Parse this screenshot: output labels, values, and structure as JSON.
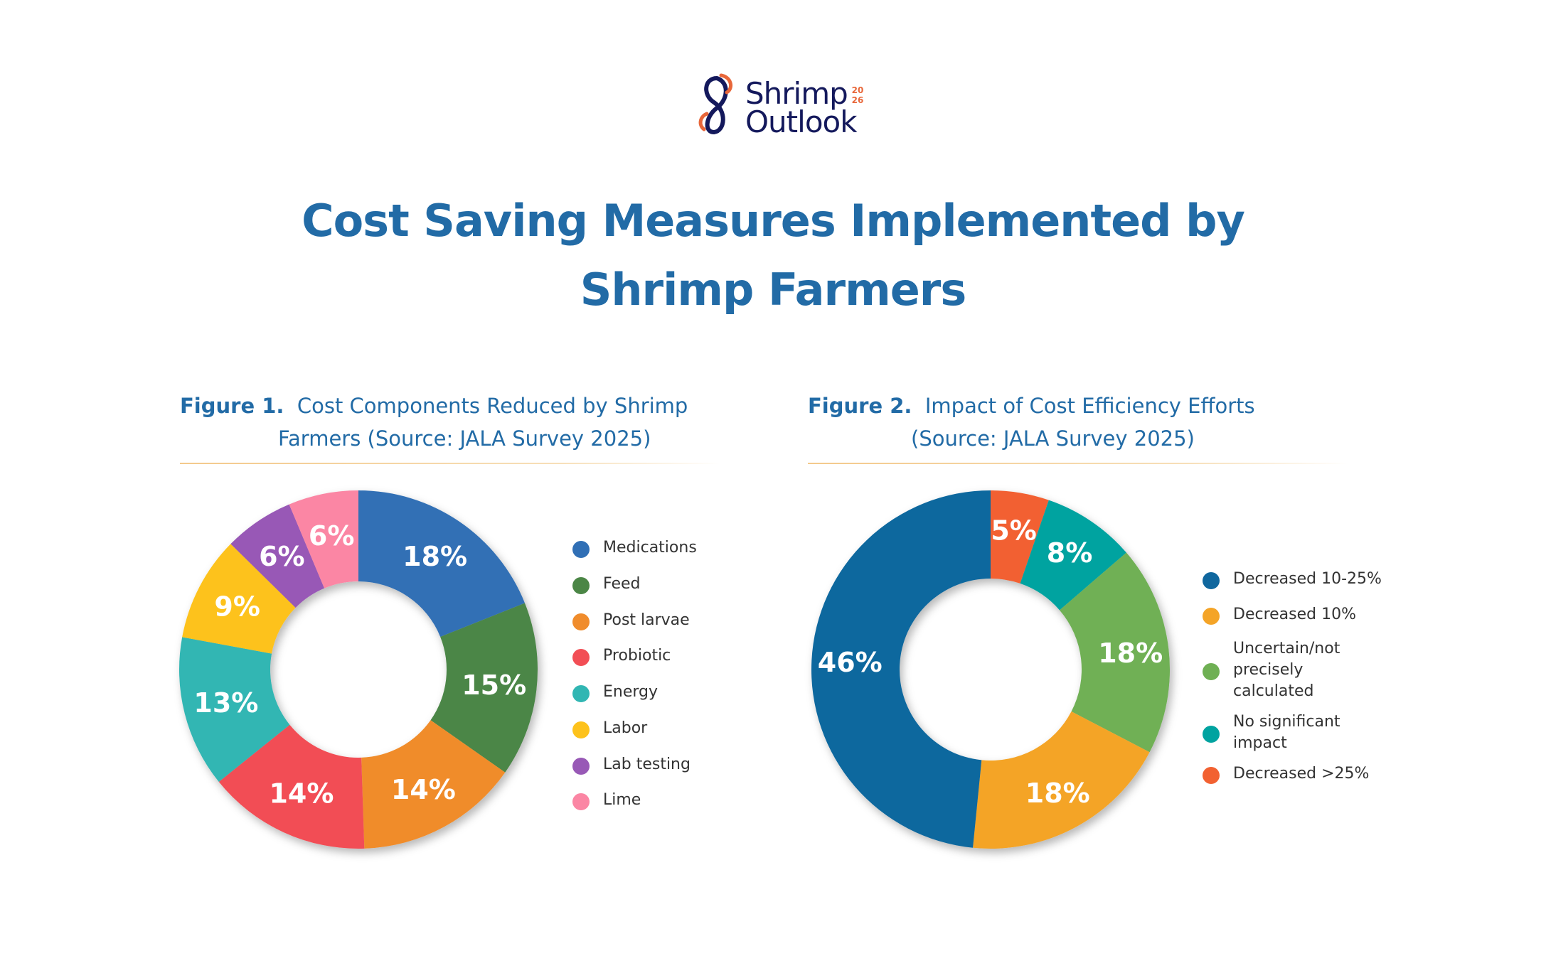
{
  "logo": {
    "line1": "Shrimp",
    "line2": "Outlook",
    "year_top": "20",
    "year_bottom": "26"
  },
  "title": {
    "line1": "Cost Saving Measures Implemented by",
    "line2": "Shrimp Farmers"
  },
  "colors": {
    "title": "#226ba6",
    "logo_navy": "#14195c",
    "logo_orange": "#e8673a",
    "rule": "#f3c98b"
  },
  "chart_data": [
    {
      "type": "pie",
      "figure_label": "Figure 1.",
      "title_line1": "Cost Components Reduced by Shrimp",
      "title_line2": "Farmers (Source: JALA Survey 2025)",
      "donut": true,
      "legend_position": "right",
      "categories": [
        "Medications",
        "Feed",
        "Post larvae",
        "Probiotic",
        "Energy",
        "Labor",
        "Lab testing",
        "Lime"
      ],
      "values": [
        18,
        15,
        14,
        14,
        13,
        9,
        6,
        6
      ],
      "labels": [
        "18%",
        "15%",
        "14%",
        "14%",
        "13%",
        "9%",
        "6%",
        "6%"
      ],
      "colors": [
        "#306fb5",
        "#4b8646",
        "#f08c2c",
        "#f24e55",
        "#31b6b3",
        "#fdc21c",
        "#9859b6",
        "#fb86a4"
      ]
    },
    {
      "type": "pie",
      "figure_label": "Figure 2.",
      "title_line1": "Impact of Cost Efficiency Efforts",
      "title_line2": "(Source: JALA Survey 2025)",
      "donut": true,
      "legend_position": "right",
      "categories": [
        "Decreased 10-25%",
        "Decreased 10%",
        "Uncertain/not precisely calculated",
        "No significant impact",
        "Decreased >25%"
      ],
      "legend_lines": [
        [
          "Decreased 10-25%"
        ],
        [
          "Decreased 10%"
        ],
        [
          "Uncertain/not",
          "precisely",
          "calculated"
        ],
        [
          "No significant",
          "impact"
        ],
        [
          "Decreased >25%"
        ]
      ],
      "values": [
        46,
        18,
        18,
        8,
        5
      ],
      "labels": [
        "46%",
        "18%",
        "18%",
        "8%",
        "5%"
      ],
      "slice_order": [
        "Decreased >25%",
        "No significant impact",
        "Uncertain/not precisely calculated",
        "Decreased 10%",
        "Decreased 10-25%"
      ],
      "colors": [
        "#10679e",
        "#f4a427",
        "#6fb054",
        "#00a3a0",
        "#f26131"
      ]
    }
  ]
}
